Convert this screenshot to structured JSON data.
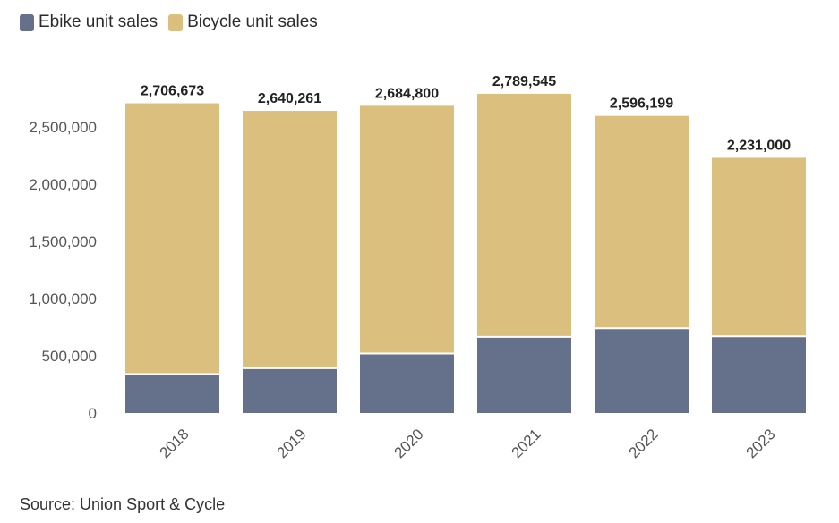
{
  "chart_data": {
    "type": "bar",
    "stacked": true,
    "title": "",
    "xlabel": "",
    "ylabel": "",
    "categories": [
      "2018",
      "2019",
      "2020",
      "2021",
      "2022",
      "2023"
    ],
    "series": [
      {
        "name": "Ebike unit sales",
        "color": "#65718b",
        "values": [
          340000,
          392000,
          520000,
          665000,
          740000,
          670000
        ]
      },
      {
        "name": "Bicycle unit sales",
        "color": "#dbbf7f",
        "values": [
          2366673,
          2248261,
          2164800,
          2124545,
          1856199,
          1561000
        ]
      }
    ],
    "totals": [
      2706673,
      2640261,
      2684800,
      2789545,
      2596199,
      2231000
    ],
    "total_labels": [
      "2,706,673",
      "2,640,261",
      "2,684,800",
      "2,789,545",
      "2,596,199",
      "2,231,000"
    ],
    "yticks": [
      0,
      500000,
      1000000,
      1500000,
      2000000,
      2500000
    ],
    "ytick_labels": [
      "0",
      "500,000",
      "1,000,000",
      "1,500,000",
      "2,000,000",
      "2,500,000"
    ],
    "ylim": [
      0,
      2800000
    ],
    "legend_position": "top-left",
    "grid": false
  },
  "source": "Source: Union Sport & Cycle"
}
